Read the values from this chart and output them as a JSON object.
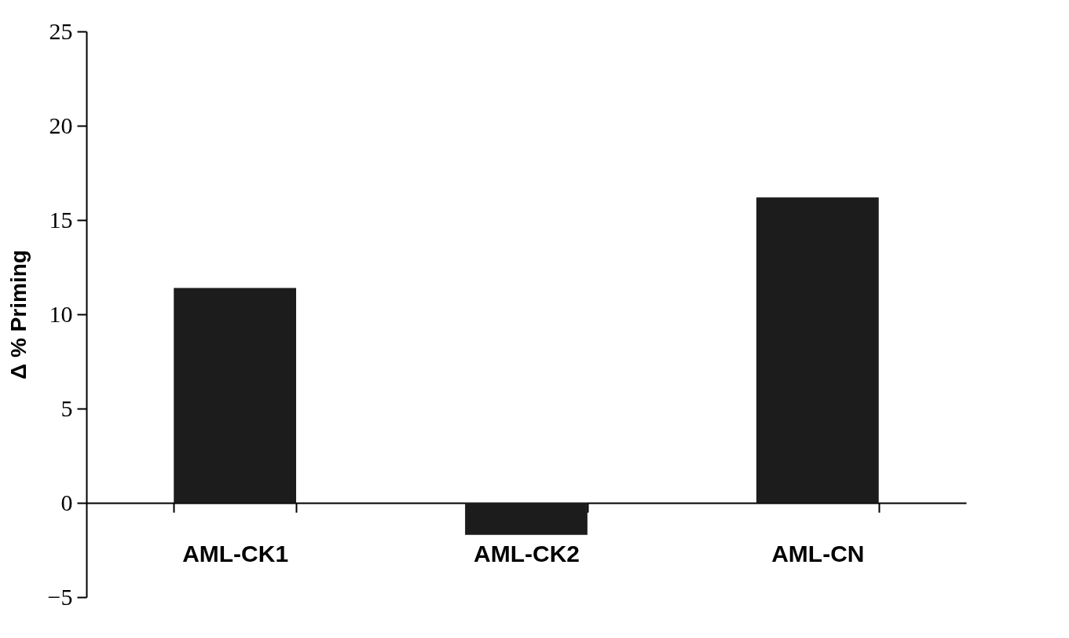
{
  "chart_data": {
    "type": "bar",
    "ylabel": "Δ % Priming",
    "categories": [
      "AML-CK1",
      "AML-CK2",
      "AML-CN"
    ],
    "values": [
      11.4,
      -1.7,
      16.2
    ],
    "color": "#1c1c1c",
    "ylim": [
      -5,
      25
    ],
    "yticks": [
      -5,
      0,
      5,
      10,
      15,
      20,
      25
    ],
    "grid": false
  }
}
